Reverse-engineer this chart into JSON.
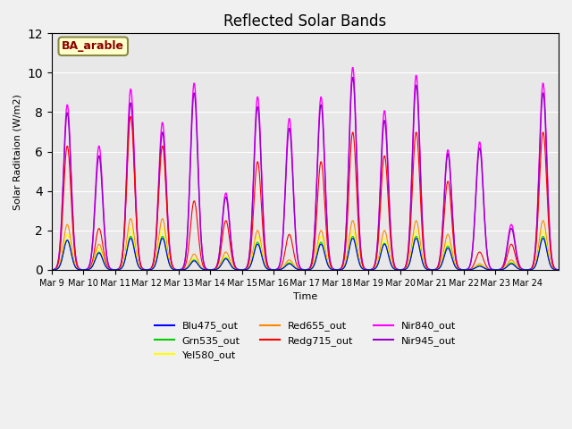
{
  "title": "Reflected Solar Bands",
  "xlabel": "Time",
  "ylabel": "Solar Raditaion (W/m2)",
  "annotation": "BA_arable",
  "ylim": [
    0,
    12
  ],
  "plot_bg_color": "#e8e8e8",
  "fig_bg_color": "#f0f0f0",
  "series_colors": {
    "Blu475_out": "#0000ff",
    "Grn535_out": "#00cc00",
    "Yel580_out": "#ffff00",
    "Red655_out": "#ff8800",
    "Redg715_out": "#ff0000",
    "Nir840_out": "#ff00ff",
    "Nir945_out": "#9900cc"
  },
  "xtick_labels": [
    "Mar 9",
    "Mar 10",
    "Mar 11",
    "Mar 12",
    "Mar 13",
    "Mar 14",
    "Mar 15",
    "Mar 16",
    "Mar 17",
    "Mar 18",
    "Mar 19",
    "Mar 20",
    "Mar 21",
    "Mar 22",
    "Mar 23",
    "Mar 24"
  ],
  "num_days": 16,
  "samples_per_day": 48,
  "nir840_peaks": [
    8.4,
    6.3,
    9.2,
    7.5,
    9.5,
    3.9,
    8.8,
    7.7,
    8.8,
    10.3,
    8.1,
    9.9,
    6.1,
    6.5,
    2.3,
    9.5
  ],
  "nir945_peaks": [
    8.0,
    5.8,
    8.5,
    7.0,
    9.0,
    3.7,
    8.3,
    7.2,
    8.4,
    9.8,
    7.6,
    9.4,
    5.9,
    6.2,
    2.1,
    9.0
  ],
  "redg715_peaks": [
    6.3,
    2.1,
    7.8,
    6.3,
    3.5,
    2.5,
    5.5,
    1.8,
    5.5,
    7.0,
    5.8,
    7.0,
    4.5,
    0.9,
    1.3,
    7.0
  ],
  "red655_peaks": [
    2.3,
    1.3,
    2.6,
    2.6,
    0.8,
    0.9,
    2.0,
    0.5,
    2.0,
    2.5,
    2.0,
    2.5,
    1.8,
    0.3,
    0.5,
    2.5
  ],
  "yel580_peaks": [
    1.8,
    1.1,
    2.1,
    2.1,
    0.6,
    0.7,
    1.7,
    0.4,
    1.7,
    2.0,
    1.6,
    2.0,
    1.4,
    0.25,
    0.4,
    2.0
  ],
  "grn535_peaks": [
    1.5,
    0.9,
    1.7,
    1.7,
    0.5,
    0.6,
    1.4,
    0.35,
    1.4,
    1.7,
    1.35,
    1.7,
    1.2,
    0.2,
    0.35,
    1.7
  ],
  "blu475_peaks": [
    1.5,
    0.85,
    1.6,
    1.6,
    0.45,
    0.55,
    1.3,
    0.3,
    1.3,
    1.6,
    1.3,
    1.6,
    1.1,
    0.18,
    0.3,
    1.6
  ]
}
